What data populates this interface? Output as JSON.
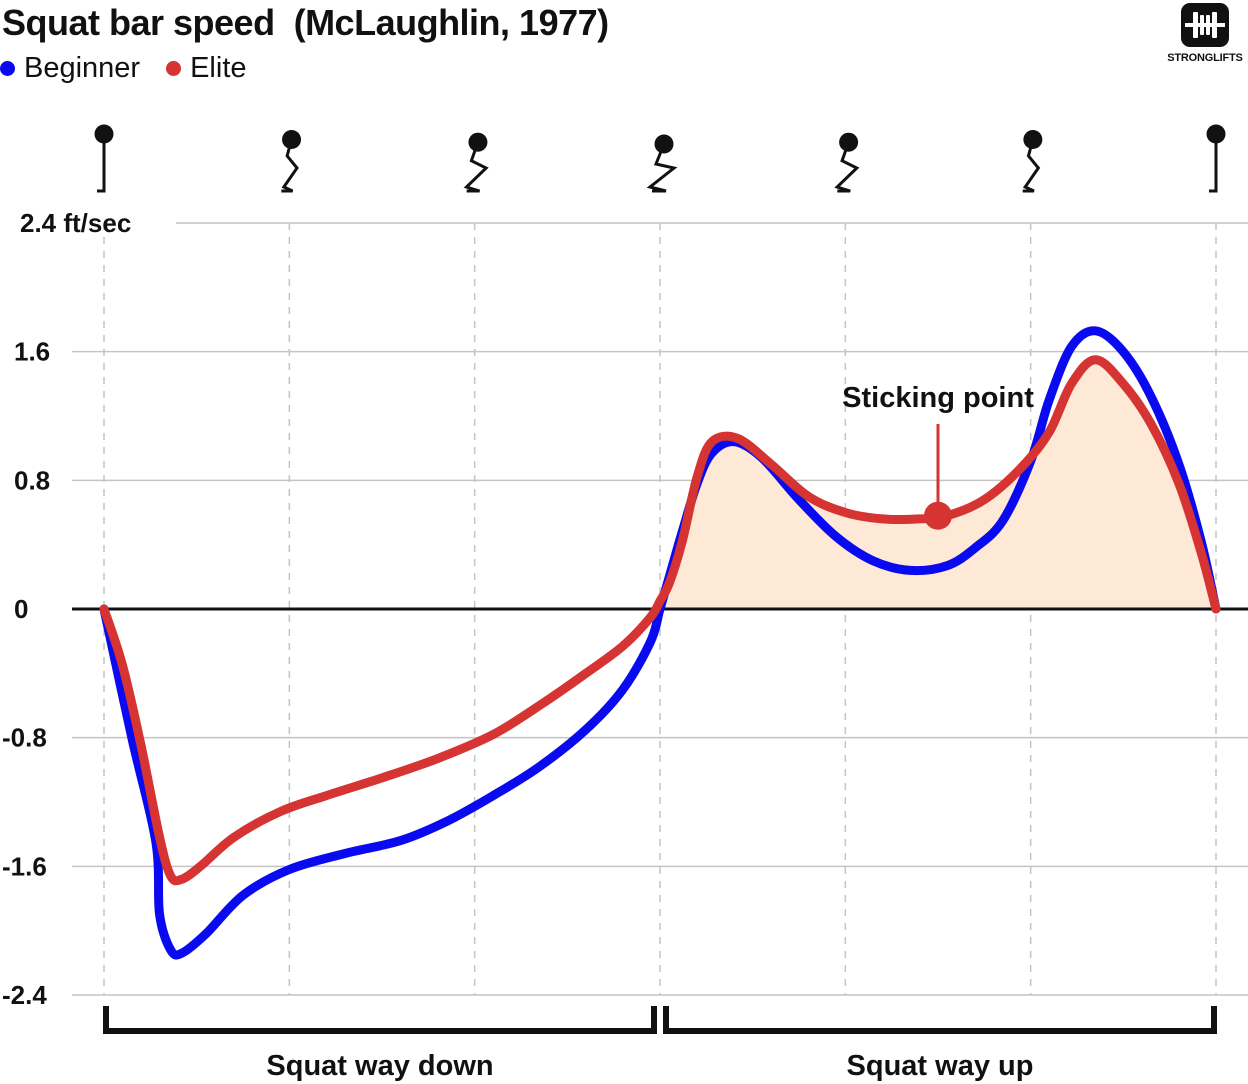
{
  "header": {
    "title": "Squat bar speed  (McLaughlin, 1977)"
  },
  "brand": {
    "label": "STRONGLIFTS",
    "icon": "barbell-logo-icon"
  },
  "chart_data": {
    "type": "line",
    "title": "Squat bar speed  (McLaughlin, 1977)",
    "ylabel": "ft/sec",
    "ylim": [
      -2.4,
      2.4
    ],
    "y_ticks": [
      {
        "value": 2.4,
        "label": "2.4 ft/sec"
      },
      {
        "value": 1.6,
        "label": "1.6"
      },
      {
        "value": 0.8,
        "label": "0.8"
      },
      {
        "value": 0,
        "label": "0"
      },
      {
        "value": -0.8,
        "label": "-0.8"
      },
      {
        "value": -1.6,
        "label": "-1.6"
      },
      {
        "value": -2.4,
        "label": "-2.4"
      }
    ],
    "xlim": [
      0,
      6
    ],
    "x_gridlines": [
      0,
      1,
      2,
      3,
      4,
      5,
      6
    ],
    "grid": true,
    "legend_position": "top-left",
    "series": [
      {
        "name": "Beginner",
        "color": "#0a0af0",
        "x": [
          0,
          0.15,
          0.28,
          0.3,
          0.36,
          0.42,
          0.55,
          0.75,
          1.0,
          1.3,
          1.6,
          1.85,
          2.1,
          2.35,
          2.6,
          2.8,
          2.95,
          3.0,
          3.05,
          3.12,
          3.2,
          3.28,
          3.4,
          3.55,
          3.75,
          3.95,
          4.15,
          4.35,
          4.55,
          4.7,
          4.85,
          5.0,
          5.1,
          5.22,
          5.35,
          5.5,
          5.65,
          5.8,
          5.92,
          6.0
        ],
        "y": [
          0,
          -0.8,
          -1.45,
          -1.9,
          -2.12,
          -2.14,
          -2.02,
          -1.78,
          -1.62,
          -1.52,
          -1.44,
          -1.32,
          -1.16,
          -0.98,
          -0.75,
          -0.5,
          -0.2,
          0,
          0.2,
          0.48,
          0.78,
          0.97,
          1.04,
          0.94,
          0.68,
          0.45,
          0.3,
          0.24,
          0.27,
          0.38,
          0.55,
          0.92,
          1.3,
          1.63,
          1.73,
          1.6,
          1.32,
          0.9,
          0.42,
          0
        ]
      },
      {
        "name": "Elite",
        "color": "#d63333",
        "x": [
          0,
          0.1,
          0.2,
          0.3,
          0.36,
          0.42,
          0.52,
          0.7,
          0.95,
          1.2,
          1.5,
          1.8,
          2.1,
          2.35,
          2.6,
          2.8,
          2.95,
          3.0,
          3.05,
          3.12,
          3.2,
          3.28,
          3.42,
          3.6,
          3.8,
          4.0,
          4.2,
          4.4,
          4.55,
          4.75,
          4.95,
          5.1,
          5.22,
          5.35,
          5.5,
          5.65,
          5.8,
          5.92,
          6.0
        ],
        "y": [
          0,
          -0.35,
          -0.85,
          -1.42,
          -1.66,
          -1.68,
          -1.6,
          -1.42,
          -1.26,
          -1.16,
          -1.05,
          -0.93,
          -0.78,
          -0.6,
          -0.4,
          -0.23,
          -0.05,
          0.05,
          0.16,
          0.42,
          0.82,
          1.04,
          1.06,
          0.9,
          0.7,
          0.6,
          0.56,
          0.56,
          0.58,
          0.68,
          0.88,
          1.1,
          1.4,
          1.55,
          1.4,
          1.15,
          0.78,
          0.35,
          0
        ]
      }
    ],
    "annotation": {
      "text": "Sticking point",
      "x": 4.5,
      "y": 0.58,
      "series": "Elite"
    },
    "shaded_region": {
      "series": "Elite",
      "x_from": 3.0,
      "x_to": 6.0,
      "color": "#fde9d6"
    },
    "phases": [
      {
        "label": "Squat way down",
        "x_from": 0,
        "x_to": 3
      },
      {
        "label": "Squat way up",
        "x_from": 3,
        "x_to": 6
      }
    ],
    "squat_figures": {
      "count": 7,
      "icon": "squat-stick-figure-icon"
    }
  }
}
